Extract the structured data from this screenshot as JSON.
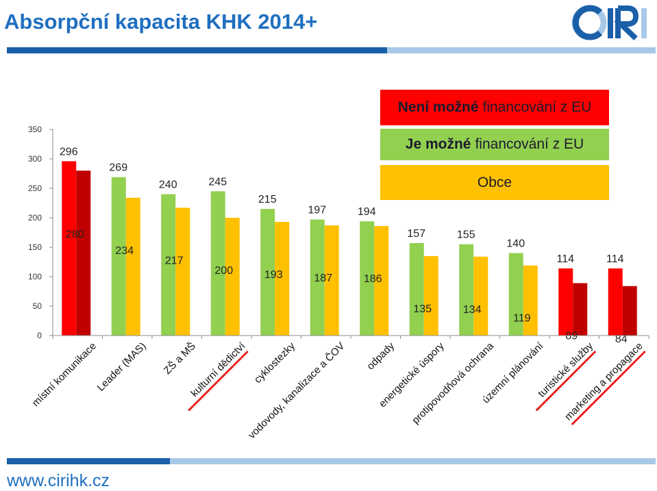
{
  "header": {
    "title": "Absorpční kapacita KHK 2014+"
  },
  "footer": {
    "url": "www.cirihk.cz"
  },
  "logo": {
    "text": "CIRI"
  },
  "colors": {
    "accent_dark": "#1a5fa8",
    "accent_light": "#a8c8e8",
    "green": "#92d050",
    "yellow": "#ffc000",
    "red": "#ff0000",
    "dark_red": "#c00000"
  },
  "legend": [
    {
      "bold": "Není možné",
      "rest": "financování z EU",
      "color": "#ff0000"
    },
    {
      "bold": "Je možné",
      "rest": "financování z EU",
      "color": "#92d050"
    },
    {
      "bold": "",
      "rest": "Obce",
      "color": "#ffc000"
    }
  ],
  "chart_data": {
    "type": "bar",
    "ylim": [
      0,
      350
    ],
    "yticks": [
      0,
      50,
      100,
      150,
      200,
      250,
      300,
      350
    ],
    "categories": [
      "místní komunikace",
      "Leader (MAS)",
      "ZŠ a MŠ",
      "kulturní dědictví",
      "cyklostezky",
      "vodovody, kanalizace a ČOV",
      "odpady",
      "energetické úspory",
      "protipovodňová ochrana",
      "územní plánování",
      "turistické služby",
      "marketing a propagace"
    ],
    "underlined_categories": [
      "kulturní dědictví",
      "turistické služby",
      "marketing a propagace"
    ],
    "series": [
      {
        "values": [
          296,
          269,
          240,
          245,
          215,
          197,
          194,
          157,
          155,
          140,
          114,
          114
        ]
      },
      {
        "values": [
          280,
          234,
          217,
          200,
          193,
          187,
          186,
          135,
          134,
          119,
          89,
          84
        ]
      }
    ],
    "first_bar_colors": [
      "#ff0000",
      "#92d050",
      "#92d050",
      "#92d050",
      "#92d050",
      "#92d050",
      "#92d050",
      "#92d050",
      "#92d050",
      "#92d050",
      "#ff0000",
      "#ff0000"
    ],
    "second_bar_colors": [
      "#c00000",
      "#ffc000",
      "#ffc000",
      "#ffc000",
      "#ffc000",
      "#ffc000",
      "#ffc000",
      "#ffc000",
      "#ffc000",
      "#ffc000",
      "#c00000",
      "#c00000"
    ],
    "grid": false
  }
}
